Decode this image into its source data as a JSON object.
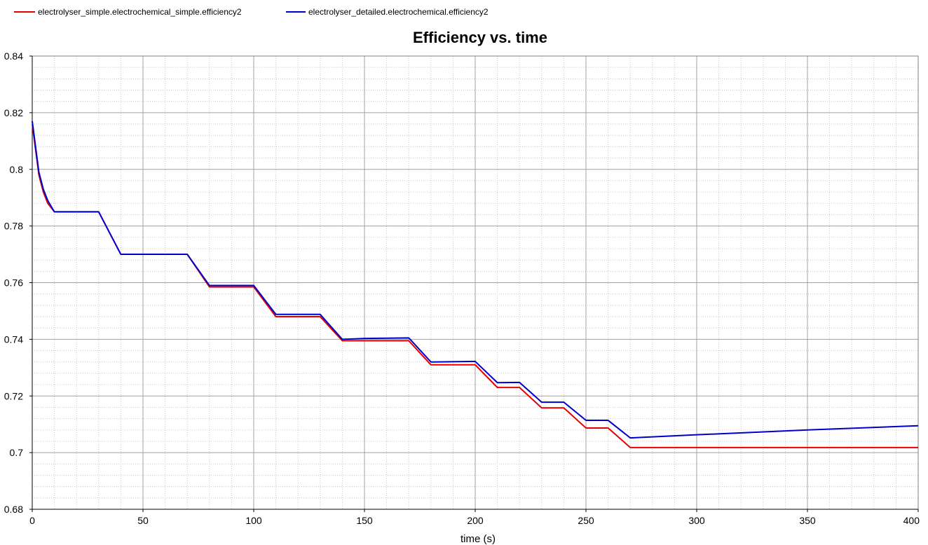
{
  "chart_data": {
    "type": "line",
    "title": "Efficiency  vs. time",
    "xlabel": "time (s)",
    "ylabel": "",
    "xlim": [
      0,
      400
    ],
    "ylim": [
      0.68,
      0.84
    ],
    "x_ticks": [
      "0",
      "50",
      "100",
      "150",
      "200",
      "250",
      "300",
      "350",
      "400"
    ],
    "y_ticks": [
      "0.68",
      "0.7",
      "0.72",
      "0.74",
      "0.76",
      "0.78",
      "0.8",
      "0.82",
      "0.84"
    ],
    "grid": true,
    "legend_position": "top-left",
    "series": [
      {
        "name": "electrolyser_simple.electrochemical_simple.efficiency2",
        "color": "#e60000",
        "x": [
          0,
          1,
          2,
          3,
          5,
          7,
          10,
          30,
          40,
          70,
          80,
          100,
          110,
          130,
          140,
          170,
          180,
          200,
          210,
          220,
          230,
          240,
          250,
          260,
          270,
          400
        ],
        "y": [
          0.816,
          0.81,
          0.804,
          0.798,
          0.792,
          0.788,
          0.785,
          0.785,
          0.77,
          0.77,
          0.7585,
          0.7585,
          0.748,
          0.748,
          0.7395,
          0.7395,
          0.731,
          0.731,
          0.723,
          0.723,
          0.7158,
          0.7158,
          0.7087,
          0.7087,
          0.7018,
          0.7018
        ]
      },
      {
        "name": "electrolyser_detailed.electrochemical.efficiency2",
        "color": "#0000cc",
        "x": [
          0,
          1,
          2,
          3,
          5,
          7,
          10,
          30,
          40,
          70,
          80,
          100,
          110,
          130,
          140,
          150,
          170,
          180,
          200,
          210,
          220,
          230,
          240,
          250,
          260,
          270,
          300,
          350,
          400
        ],
        "y": [
          0.817,
          0.811,
          0.805,
          0.799,
          0.793,
          0.789,
          0.785,
          0.785,
          0.77,
          0.77,
          0.759,
          0.759,
          0.7488,
          0.7488,
          0.74,
          0.7403,
          0.7405,
          0.732,
          0.7322,
          0.7247,
          0.7248,
          0.7178,
          0.7178,
          0.7114,
          0.7114,
          0.7052,
          0.7063,
          0.708,
          0.7095
        ]
      }
    ]
  }
}
